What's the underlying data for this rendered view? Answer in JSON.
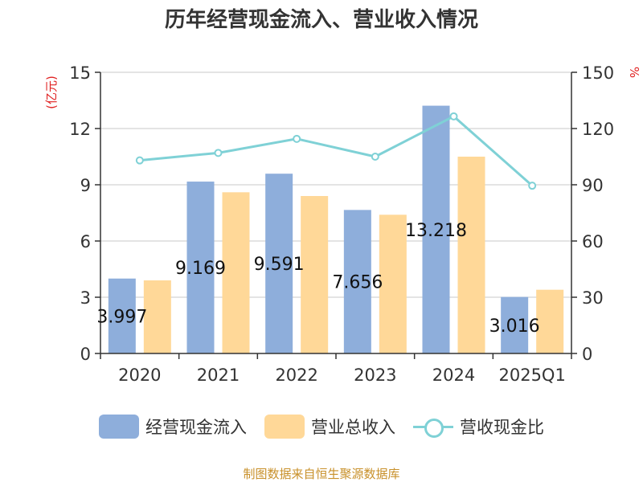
{
  "chart_data": {
    "type": "bar",
    "title": "历年经营现金流入、营业收入情况",
    "categories": [
      "2020",
      "2021",
      "2022",
      "2023",
      "2024",
      "2025Q1"
    ],
    "series": [
      {
        "name": "经营现金流入",
        "type": "bar",
        "axis": "left",
        "color": "#8eaedb",
        "values": [
          3.997,
          9.169,
          9.591,
          7.656,
          13.218,
          3.016
        ],
        "data_labels": [
          "3.997",
          "9.169",
          "9.591",
          "7.656",
          "13.218",
          "3.016"
        ]
      },
      {
        "name": "营业总收入",
        "type": "bar",
        "axis": "left",
        "color": "#ffd898",
        "values": [
          3.9,
          8.6,
          8.4,
          7.4,
          10.5,
          3.4
        ]
      },
      {
        "name": "营收现金比",
        "type": "line",
        "axis": "right",
        "color": "#7fd1d6",
        "values": [
          103,
          107,
          114.5,
          105,
          126.5,
          89.5
        ]
      }
    ],
    "yaxis_left": {
      "label": "(亿元)",
      "ylim": [
        0,
        15
      ],
      "ticks": [
        0,
        3,
        6,
        9,
        12,
        15
      ],
      "label_color": "#e02020"
    },
    "yaxis_right": {
      "label": "%",
      "ylim": [
        0,
        150
      ],
      "ticks": [
        0,
        30,
        60,
        90,
        120,
        150
      ],
      "label_color": "#e02020"
    },
    "grid": true,
    "legend": "bottom"
  },
  "source_text": "制图数据来自恒生聚源数据库"
}
